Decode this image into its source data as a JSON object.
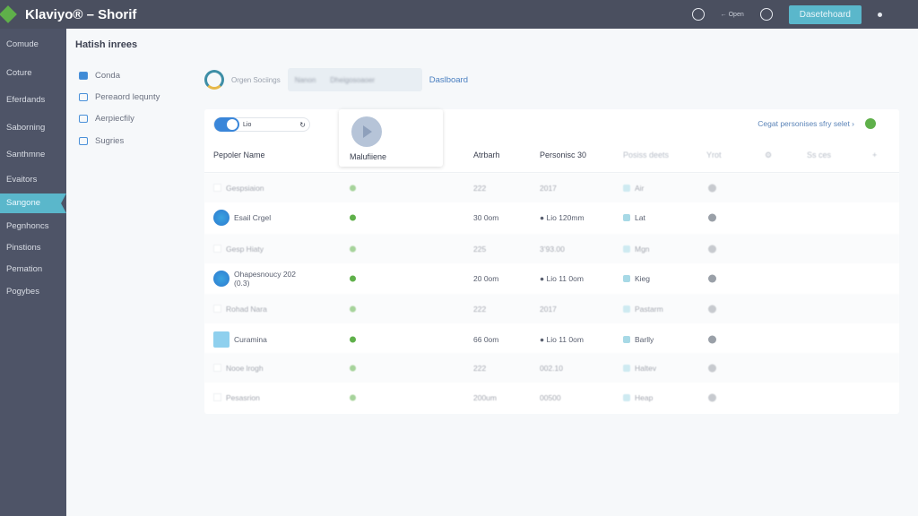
{
  "topbar": {
    "title": "Klaviyo® – Shorif",
    "link": "← Open",
    "primary_button": "Dasetehoard"
  },
  "nav": {
    "items": [
      "Comude",
      "Coture",
      "Eferdands",
      "Saborning",
      "Santhmne",
      "Evaitors",
      "Sangone",
      "Pegnhoncs",
      "Pinstions",
      "Pemation",
      "Pogybes"
    ],
    "active_index": 6
  },
  "page_title": "Hatish inrees",
  "subnav": [
    "Conda",
    "Pereaord lequnty",
    "Aerpiecfily",
    "Sugries"
  ],
  "tabs": {
    "spinner_label": "Orgen Sociings",
    "tab1": "Nanon",
    "tab2": "Dheigosoaoer",
    "link": "Daslboard"
  },
  "card": {
    "toggle_label": "Lio",
    "toggle_on": true,
    "video_label": "Malufiiene",
    "select_link": "Cegat personises sfry selet ›",
    "columns": [
      "Pepoler Name",
      "Atrbarh",
      "Personisc 30",
      "Posiss deets",
      "Yrot",
      "⚙",
      "Ss ces",
      "+"
    ],
    "rows": [
      {
        "icon": "checkbox",
        "name": "Gespsiaion",
        "c2": "222",
        "c3": "2017",
        "tag": "Air",
        "dim": true
      },
      {
        "icon": "avatar",
        "name": "Esail Crgel",
        "c2": "30 0om",
        "c3": "● Lio 120mm",
        "tag": "Lat",
        "dim": false
      },
      {
        "icon": "checkbox",
        "name": "Gesp Hiaty",
        "c2": "225",
        "c3": "3’93.00",
        "tag": "Mgn",
        "dim": true
      },
      {
        "icon": "avatar",
        "name": "Ohapesnoucy 202",
        "sub": "(0.3)",
        "c2": "20 0om",
        "c3": "● Lio 11 0om",
        "tag": "Kieg",
        "dim": false
      },
      {
        "icon": "checkbox",
        "name": "Rohad Nara",
        "c2": "222",
        "c3": "2017",
        "tag": "Pastarm",
        "dim": true
      },
      {
        "icon": "box",
        "name": "Curamina",
        "c2": "66 0om",
        "c3": "● Lio 11 0om",
        "tag": "Barlly",
        "dim": false
      },
      {
        "icon": "checkbox",
        "name": "Nooe lrogh",
        "c2": "222",
        "c3": "002.10",
        "tag": "Haltev",
        "dim": true
      },
      {
        "icon": "checkbox",
        "name": "Pesasrion",
        "c2": "200um",
        "c3": "00500",
        "tag": "Heap",
        "dim": true
      }
    ]
  },
  "colors": {
    "topbar": "#4a4f5f",
    "sidebar": "#4e5467",
    "accent": "#5ab7cb",
    "status": "#5fb04a",
    "link": "#4a7fc0"
  }
}
